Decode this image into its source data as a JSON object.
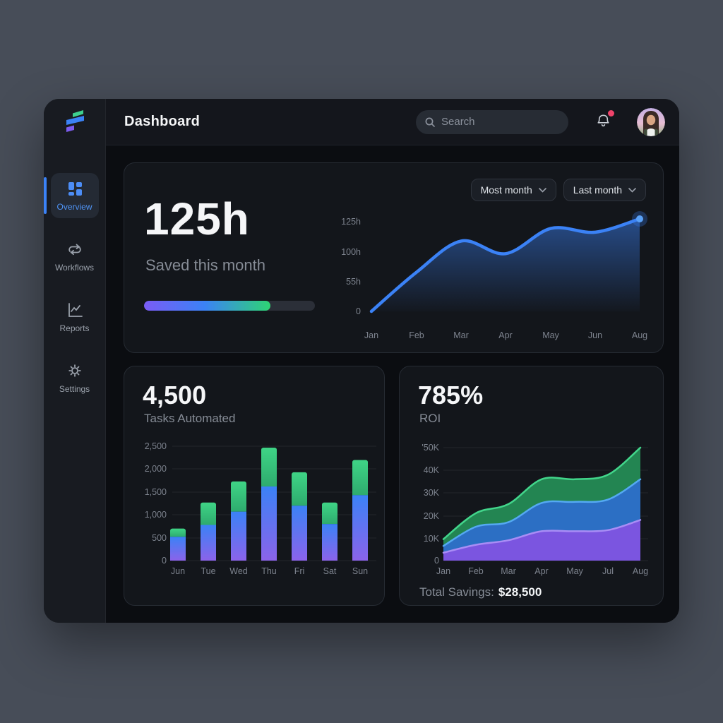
{
  "header": {
    "title": "Dashboard",
    "search_placeholder": "Search"
  },
  "sidebar": {
    "items": [
      {
        "label": "Overview",
        "icon": "grid-icon",
        "active": true
      },
      {
        "label": "Workflows",
        "icon": "sync-icon",
        "active": false
      },
      {
        "label": "Reports",
        "icon": "chart-line-icon",
        "active": false
      },
      {
        "label": "Settings",
        "icon": "gear-icon",
        "active": false
      }
    ]
  },
  "filters": {
    "filter1": "Most month",
    "filter2": "Last month"
  },
  "cards": {
    "saved": {
      "value": "125h",
      "label": "Saved this month",
      "progress_pct": 74
    },
    "tasks": {
      "value": "4,500",
      "label": "Tasks Automated"
    },
    "roi": {
      "value": "785%",
      "label": "ROI",
      "footer_label": "Total Savings:",
      "footer_value": "$28,500"
    }
  },
  "chart_data": [
    {
      "id": "hours-saved-line",
      "type": "line",
      "x": [
        "Jan",
        "Feb",
        "Mar",
        "Apr",
        "May",
        "Jun",
        "Aug"
      ],
      "values": [
        0,
        53,
        95,
        78,
        112,
        107,
        125
      ],
      "yticks": [
        "125h",
        "100h",
        "55h",
        "0"
      ],
      "ylim": [
        0,
        125
      ],
      "grid": false,
      "color": "#3b82f6",
      "endpoint_marker": true
    },
    {
      "id": "tasks-automated-bars",
      "type": "bar",
      "categories": [
        "Jun",
        "Tue",
        "Wed",
        "Thu",
        "Fri",
        "Sat",
        "Sun"
      ],
      "series": [
        {
          "name": "lower",
          "values": [
            520,
            780,
            1070,
            1620,
            1200,
            800,
            1430
          ]
        },
        {
          "name": "upper",
          "values": [
            180,
            490,
            660,
            850,
            730,
            470,
            770
          ]
        }
      ],
      "totals": [
        700,
        1270,
        1730,
        2470,
        1930,
        1270,
        2200
      ],
      "yticks": [
        "2,500",
        "2,000",
        "1,500",
        "1,000",
        "500",
        "0"
      ],
      "ylim": [
        0,
        2500
      ],
      "grid": true
    },
    {
      "id": "roi-stacked-area",
      "type": "area",
      "x": [
        "Jan",
        "Feb",
        "Mar",
        "Apr",
        "May",
        "Jul",
        "Aug"
      ],
      "series": [
        {
          "name": "green",
          "cumulative_values_k": [
            9.5,
            21,
            25,
            36,
            36,
            38,
            50
          ],
          "fill": "#238552",
          "stroke": "#42d68b"
        },
        {
          "name": "blue",
          "cumulative_values_k": [
            6.5,
            15,
            17,
            25.5,
            26,
            27,
            36
          ],
          "fill": "#2c6fc4",
          "stroke": "#54a9f2"
        },
        {
          "name": "purple",
          "cumulative_values_k": [
            3.5,
            7,
            9,
            13,
            13,
            13.5,
            18
          ],
          "fill": "#7b55e0",
          "stroke": "#a98df5"
        }
      ],
      "yticks": [
        "'50K",
        "40K",
        "30K",
        "20K",
        "10K",
        "0"
      ],
      "ylim": [
        0,
        50
      ],
      "grid": true
    }
  ],
  "colors": {
    "accent_blue": "#3b82f6",
    "accent_green": "#2ed573",
    "accent_purple": "#7a5cf5",
    "notification": "#f0436a",
    "card_bg": "#13161b",
    "page_bg": "#474d58"
  }
}
